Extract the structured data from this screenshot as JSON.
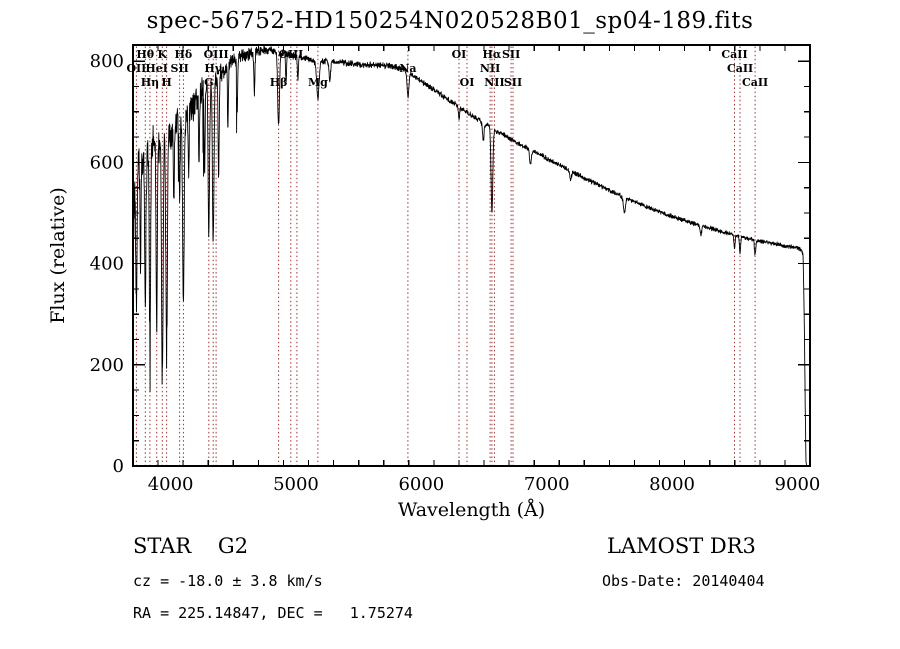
{
  "chart_data": {
    "type": "line",
    "title": "spec-56752-HD150254N020528B01_sp04-189.fits",
    "xlabel": "Wavelength (Å)",
    "ylabel": "Flux (relative)",
    "xlim": [
      3700,
      9100
    ],
    "ylim": [
      0,
      832
    ],
    "x_ticks": [
      4000,
      5000,
      6000,
      7000,
      8000,
      9000
    ],
    "x_minor_step": 200,
    "y_ticks": [
      0,
      200,
      400,
      600,
      800
    ],
    "y_minor_step": 50,
    "grid": false,
    "legend": "none",
    "spectrum_color": "#000000",
    "marker_line_color": "#993333",
    "series": [
      {
        "name": "spectrum-continuum-anchors",
        "points": [
          [
            3700,
            430
          ],
          [
            3720,
            560
          ],
          [
            3750,
            600
          ],
          [
            3800,
            615
          ],
          [
            3850,
            630
          ],
          [
            3900,
            640
          ],
          [
            3950,
            650
          ],
          [
            4000,
            662
          ],
          [
            4050,
            678
          ],
          [
            4100,
            692
          ],
          [
            4150,
            710
          ],
          [
            4200,
            725
          ],
          [
            4250,
            740
          ],
          [
            4300,
            752
          ],
          [
            4350,
            765
          ],
          [
            4400,
            780
          ],
          [
            4450,
            792
          ],
          [
            4500,
            800
          ],
          [
            4550,
            806
          ],
          [
            4600,
            812
          ],
          [
            4650,
            816
          ],
          [
            4700,
            820
          ],
          [
            4750,
            822
          ],
          [
            4800,
            820
          ],
          [
            4850,
            818
          ],
          [
            4900,
            815
          ],
          [
            4950,
            812
          ],
          [
            5000,
            810
          ],
          [
            5050,
            807
          ],
          [
            5100,
            803
          ],
          [
            5150,
            800
          ],
          [
            5200,
            800
          ],
          [
            5250,
            800
          ],
          [
            5300,
            799
          ],
          [
            5350,
            798
          ],
          [
            5400,
            796
          ],
          [
            5450,
            795
          ],
          [
            5500,
            794
          ],
          [
            5550,
            793
          ],
          [
            5600,
            792
          ],
          [
            5650,
            792
          ],
          [
            5700,
            791
          ],
          [
            5750,
            790
          ],
          [
            5800,
            788
          ],
          [
            5850,
            785
          ],
          [
            5900,
            778
          ],
          [
            5950,
            770
          ],
          [
            6000,
            760
          ],
          [
            6050,
            752
          ],
          [
            6100,
            743
          ],
          [
            6150,
            735
          ],
          [
            6200,
            726
          ],
          [
            6250,
            718
          ],
          [
            6300,
            709
          ],
          [
            6350,
            701
          ],
          [
            6400,
            693
          ],
          [
            6450,
            685
          ],
          [
            6500,
            677
          ],
          [
            6550,
            670
          ],
          [
            6600,
            662
          ],
          [
            6650,
            655
          ],
          [
            6700,
            648
          ],
          [
            6750,
            641
          ],
          [
            6800,
            634
          ],
          [
            6850,
            628
          ],
          [
            6900,
            621
          ],
          [
            6950,
            615
          ],
          [
            7000,
            608
          ],
          [
            7100,
            595
          ],
          [
            7200,
            582
          ],
          [
            7300,
            569
          ],
          [
            7400,
            557
          ],
          [
            7500,
            545
          ],
          [
            7600,
            533
          ],
          [
            7700,
            522
          ],
          [
            7800,
            512
          ],
          [
            7900,
            502
          ],
          [
            8000,
            493
          ],
          [
            8100,
            485
          ],
          [
            8200,
            477
          ],
          [
            8300,
            470
          ],
          [
            8400,
            463
          ],
          [
            8500,
            457
          ],
          [
            8600,
            450
          ],
          [
            8700,
            445
          ],
          [
            8800,
            440
          ],
          [
            8900,
            435
          ],
          [
            9000,
            431
          ],
          [
            9030,
            428
          ],
          [
            9045,
            415
          ],
          [
            9055,
            280
          ],
          [
            9062,
            120
          ],
          [
            9068,
            10
          ],
          [
            9072,
            0
          ]
        ]
      }
    ],
    "absorption_dips": [
      {
        "c": 3727,
        "d": 260,
        "s": 5
      },
      {
        "c": 3760,
        "d": 220,
        "s": 4
      },
      {
        "c": 3798,
        "d": 300,
        "s": 5
      },
      {
        "c": 3835,
        "d": 390,
        "s": 5
      },
      {
        "c": 3889,
        "d": 360,
        "s": 5
      },
      {
        "c": 3934,
        "d": 480,
        "s": 6
      },
      {
        "c": 3968,
        "d": 430,
        "s": 6
      },
      {
        "c": 4026,
        "d": 140,
        "s": 4
      },
      {
        "c": 4072,
        "d": 130,
        "s": 4
      },
      {
        "c": 4102,
        "d": 370,
        "s": 6
      },
      {
        "c": 4144,
        "d": 130,
        "s": 4
      },
      {
        "c": 4227,
        "d": 140,
        "s": 4
      },
      {
        "c": 4271,
        "d": 150,
        "s": 4
      },
      {
        "c": 4305,
        "d": 290,
        "s": 6
      },
      {
        "c": 4340,
        "d": 330,
        "s": 6
      },
      {
        "c": 4383,
        "d": 190,
        "s": 5
      },
      {
        "c": 4457,
        "d": 120,
        "s": 4
      },
      {
        "c": 4531,
        "d": 100,
        "s": 4
      },
      {
        "c": 4668,
        "d": 80,
        "s": 4
      },
      {
        "c": 4861,
        "d": 145,
        "s": 7
      },
      {
        "c": 4921,
        "d": 50,
        "s": 4
      },
      {
        "c": 5015,
        "d": 45,
        "s": 4
      },
      {
        "c": 5175,
        "d": 75,
        "s": 9
      },
      {
        "c": 5270,
        "d": 40,
        "s": 6
      },
      {
        "c": 5893,
        "d": 50,
        "s": 7
      },
      {
        "c": 6300,
        "d": 22,
        "s": 5
      },
      {
        "c": 6494,
        "d": 35,
        "s": 6
      },
      {
        "c": 6563,
        "d": 165,
        "s": 7
      },
      {
        "c": 6870,
        "d": 30,
        "s": 7
      },
      {
        "c": 7190,
        "d": 18,
        "s": 7
      },
      {
        "c": 7620,
        "d": 30,
        "s": 8
      },
      {
        "c": 8230,
        "d": 18,
        "s": 6
      },
      {
        "c": 8498,
        "d": 28,
        "s": 5
      },
      {
        "c": 8542,
        "d": 32,
        "s": 5
      },
      {
        "c": 8662,
        "d": 30,
        "s": 5
      }
    ],
    "noise_profile": [
      [
        3700,
        55
      ],
      [
        3900,
        48
      ],
      [
        4100,
        38
      ],
      [
        4300,
        30
      ],
      [
        4500,
        20
      ],
      [
        4700,
        11
      ],
      [
        5000,
        8
      ],
      [
        5500,
        7
      ],
      [
        5900,
        7
      ],
      [
        6500,
        6
      ],
      [
        7500,
        5
      ],
      [
        9100,
        5
      ]
    ],
    "spectral_lines": [
      {
        "label": "Hθ",
        "wl": 3798,
        "row": 1
      },
      {
        "label": "K",
        "wl": 3934,
        "row": 1
      },
      {
        "label": "Hδ",
        "wl": 4102,
        "row": 1
      },
      {
        "label": "OIII",
        "wl": 4363,
        "row": 1
      },
      {
        "label": "OIII",
        "wl": 4959,
        "row": 1
      },
      {
        "label": "",
        "wl": 5007,
        "row": 1
      },
      {
        "label": "OI",
        "wl": 6300,
        "row": 1
      },
      {
        "label": "Hα",
        "wl": 6563,
        "row": 1
      },
      {
        "label": "SII",
        "wl": 6716,
        "row": 1
      },
      {
        "label": "CaII",
        "wl": 8498,
        "row": 1
      },
      {
        "label": "OII",
        "wl": 3727,
        "row": 2
      },
      {
        "label": "HeI",
        "wl": 3889,
        "row": 2
      },
      {
        "label": "SII",
        "wl": 4072,
        "row": 2
      },
      {
        "label": "Hγ",
        "wl": 4340,
        "row": 2
      },
      {
        "label": "Na",
        "wl": 5893,
        "row": 2
      },
      {
        "label": "NII",
        "wl": 6548,
        "row": 2
      },
      {
        "label": "CaII",
        "wl": 8542,
        "row": 2
      },
      {
        "label": "Hη",
        "wl": 3835,
        "row": 3
      },
      {
        "label": "H",
        "wl": 3968,
        "row": 3
      },
      {
        "label": "G",
        "wl": 4305,
        "row": 3
      },
      {
        "label": "Hβ",
        "wl": 4861,
        "row": 3
      },
      {
        "label": "Mg",
        "wl": 5175,
        "row": 3
      },
      {
        "label": "OI",
        "wl": 6364,
        "row": 3
      },
      {
        "label": "NII",
        "wl": 6583,
        "row": 3
      },
      {
        "label": "SII",
        "wl": 6731,
        "row": 3
      },
      {
        "label": "CaII",
        "wl": 8662,
        "row": 3
      }
    ]
  },
  "annotations": {
    "class_label": "STAR    G2",
    "survey": "LAMOST DR3",
    "cz": "cz = -18.0 ± 3.8 km/s",
    "obs_date": "Obs-Date: 20140404",
    "ra_dec": "RA = 225.14847, DEC =   1.75274"
  }
}
